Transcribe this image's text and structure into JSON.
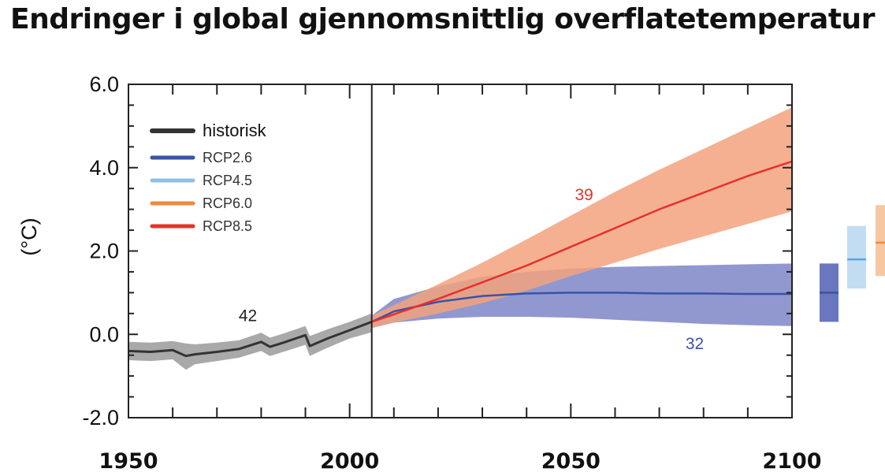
{
  "chart_data": {
    "type": "line",
    "title": "Endringer i global gjennomsnittlig overflatetemperatur",
    "ylabel": "(°C)",
    "xlabel": "",
    "xlim": [
      1950,
      2100
    ],
    "ylim": [
      -2.0,
      6.0
    ],
    "x_ticks": [
      1950,
      2000,
      2050,
      2100
    ],
    "x_tick_labels": [
      "1950",
      "2000",
      "2050",
      "2100"
    ],
    "y_ticks": [
      -2.0,
      0.0,
      2.0,
      4.0,
      6.0
    ],
    "y_tick_labels": [
      "-2.0",
      "0.0",
      "2.0",
      "4.0",
      "6.0"
    ],
    "divider_x": 2005,
    "legend": {
      "placement": "top-left",
      "entries": [
        {
          "label": "historisk",
          "color": "#333333"
        },
        {
          "label": "RCP2.6",
          "color": "#3a53a4"
        },
        {
          "label": "RCP4.5",
          "color": "#8ec0e8"
        },
        {
          "label": "RCP6.0",
          "color": "#f08a3c"
        },
        {
          "label": "RCP8.5",
          "color": "#e8302a"
        }
      ]
    },
    "series": [
      {
        "name": "historisk",
        "color": "#333333",
        "band_color": "#9a9a9a",
        "x": [
          1950,
          1955,
          1960,
          1963,
          1965,
          1970,
          1975,
          1980,
          1982,
          1985,
          1990,
          1991,
          1995,
          2000,
          2005
        ],
        "values": [
          -0.4,
          -0.42,
          -0.38,
          -0.52,
          -0.48,
          -0.42,
          -0.35,
          -0.18,
          -0.3,
          -0.2,
          -0.02,
          -0.28,
          -0.1,
          0.1,
          0.3
        ],
        "lower": [
          -0.62,
          -0.64,
          -0.6,
          -0.85,
          -0.72,
          -0.64,
          -0.56,
          -0.4,
          -0.52,
          -0.42,
          -0.25,
          -0.52,
          -0.32,
          -0.1,
          0.05
        ],
        "upper": [
          -0.18,
          -0.2,
          -0.16,
          -0.22,
          -0.24,
          -0.2,
          -0.14,
          0.04,
          -0.08,
          0.02,
          0.2,
          -0.04,
          0.12,
          0.3,
          0.5
        ],
        "count_label": "42"
      },
      {
        "name": "RCP2.6",
        "color": "#3a53a4",
        "band_color": "#7e86c8",
        "x": [
          2005,
          2010,
          2020,
          2030,
          2040,
          2050,
          2060,
          2070,
          2080,
          2090,
          2100
        ],
        "values": [
          0.3,
          0.55,
          0.78,
          0.92,
          0.98,
          1.0,
          1.0,
          0.98,
          0.98,
          0.97,
          0.97
        ],
        "lower": [
          0.15,
          0.28,
          0.38,
          0.42,
          0.42,
          0.4,
          0.35,
          0.3,
          0.25,
          0.22,
          0.2
        ],
        "upper": [
          0.45,
          0.85,
          1.15,
          1.38,
          1.5,
          1.58,
          1.62,
          1.64,
          1.66,
          1.68,
          1.7
        ],
        "count_label": "32"
      },
      {
        "name": "RCP8.5",
        "color": "#e8302a",
        "band_color": "#f2a27e",
        "x": [
          2005,
          2010,
          2020,
          2030,
          2040,
          2050,
          2060,
          2070,
          2080,
          2090,
          2100
        ],
        "values": [
          0.3,
          0.48,
          0.85,
          1.25,
          1.65,
          2.1,
          2.55,
          3.0,
          3.4,
          3.8,
          4.15
        ],
        "lower": [
          0.15,
          0.28,
          0.5,
          0.75,
          1.05,
          1.4,
          1.72,
          2.05,
          2.35,
          2.65,
          2.95
        ],
        "upper": [
          0.45,
          0.7,
          1.2,
          1.72,
          2.28,
          2.85,
          3.42,
          3.95,
          4.45,
          4.95,
          5.45
        ],
        "count_label": "39"
      }
    ],
    "side_bars_2081_2100": [
      {
        "name": "RCP2.6",
        "mean": 1.0,
        "lower": 0.3,
        "upper": 1.7,
        "color": "#3a53a4",
        "fill": "#6a76bd"
      },
      {
        "name": "RCP4.5",
        "mean": 1.8,
        "lower": 1.1,
        "upper": 2.6,
        "color": "#5aa8de",
        "fill": "#c2dcf2"
      },
      {
        "name": "RCP6.0",
        "mean": 2.2,
        "lower": 1.4,
        "upper": 3.1,
        "color": "#f08a3c",
        "fill": "#f7c7a1"
      }
    ]
  }
}
